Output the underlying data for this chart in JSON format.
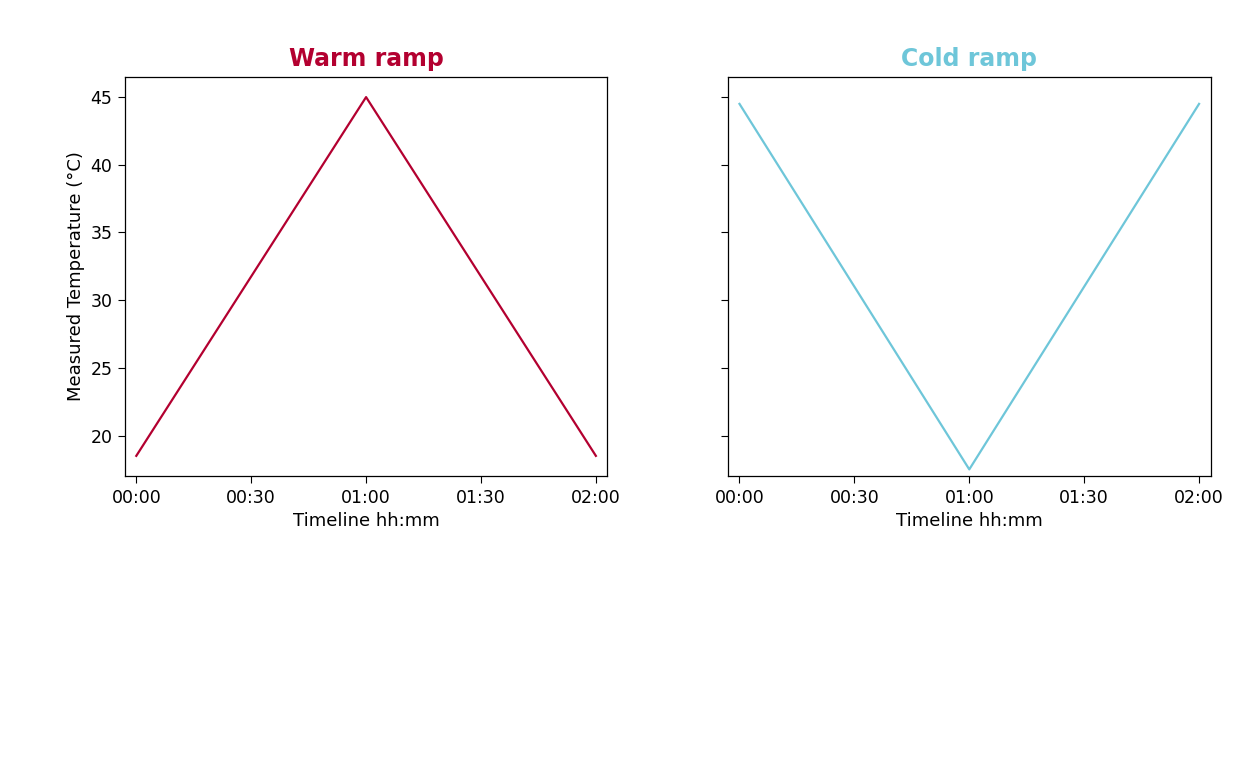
{
  "warm_ramp": {
    "title": "Warm ramp",
    "title_color": "#b30030",
    "x": [
      0,
      60,
      120
    ],
    "y": [
      18.5,
      45,
      18.5
    ],
    "line_color": "#b30030",
    "line_width": 1.6
  },
  "cold_ramp": {
    "title": "Cold ramp",
    "title_color": "#6ec6d9",
    "x": [
      0,
      60,
      120
    ],
    "y": [
      44.5,
      17.5,
      44.5
    ],
    "line_color": "#6ec6d9",
    "line_width": 1.6
  },
  "xlabel": "Timeline hh:mm",
  "ylabel": "Measured Temperature (°C)",
  "ylim": [
    17.0,
    46.5
  ],
  "yticks": [
    20,
    25,
    30,
    35,
    40,
    45
  ],
  "xticks": [
    0,
    30,
    60,
    90,
    120
  ],
  "xtick_labels": [
    "00:00",
    "00:30",
    "01:00",
    "01:30",
    "02:00"
  ],
  "xlim": [
    -3,
    123
  ],
  "background_color": "#ffffff",
  "title_fontsize": 17,
  "label_fontsize": 13,
  "tick_fontsize": 12.5
}
